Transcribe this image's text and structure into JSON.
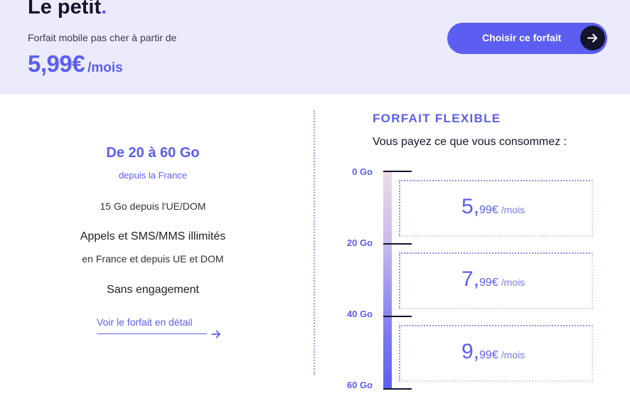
{
  "hero": {
    "title": "Le petit",
    "title_dot": ".",
    "subtitle": "Forfait mobile pas cher à partir de",
    "price_amount": "5,99€",
    "price_unit": "/mois",
    "cta_label": "Choisir ce forfait",
    "cta_icon": "arrow-right-icon"
  },
  "plan": {
    "data_range": "De 20 à 60 Go",
    "data_from": "depuis la France",
    "eu_data": "15 Go depuis l'UE/DOM",
    "calls": "Appels et SMS/MMS illimités",
    "calls_where": "en France et depuis UE et DOM",
    "commitment": "Sans engagement",
    "detail_link": "Voir le forfait en détail"
  },
  "flexible": {
    "title": "FORFAIT FLEXIBLE",
    "subtitle": "Vous payez ce que vous consommez :",
    "ticks": [
      "0 Go",
      "20 Go",
      "40 Go",
      "60 Go"
    ],
    "tiers": [
      {
        "big": "5,",
        "small": "99€",
        "unit": "/mois"
      },
      {
        "big": "7,",
        "small": "99€",
        "unit": "/mois"
      },
      {
        "big": "9,",
        "small": "99€",
        "unit": "/mois"
      }
    ]
  },
  "colors": {
    "accent": "#5b5ef0",
    "hero_bg": "#ecebfb",
    "dark": "#14142b"
  }
}
